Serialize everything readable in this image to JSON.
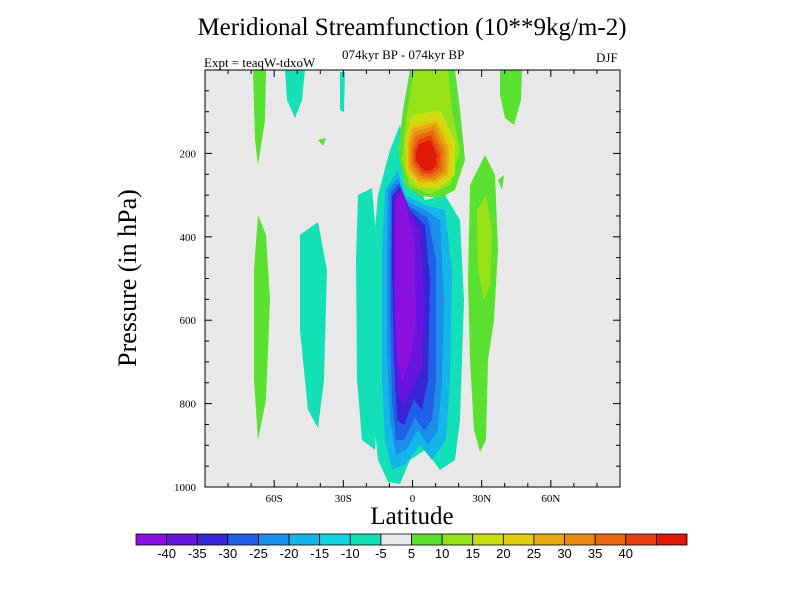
{
  "chart_data": {
    "type": "heatmap",
    "title": "Meridional Streamfunction (10**9kg/m-2)",
    "subtitle": "074kyr BP - 074kyr BP",
    "experiment": "Expt = teaqW-tdxoW",
    "season": "DJF",
    "xlabel": "Latitude",
    "ylabel": "Pressure (in hPa)",
    "xlim": [
      -90,
      90
    ],
    "ylim": [
      1000,
      0
    ],
    "x_ticks": [
      {
        "value": -60,
        "label": "60S"
      },
      {
        "value": -30,
        "label": "30S"
      },
      {
        "value": 0,
        "label": "0"
      },
      {
        "value": 30,
        "label": "30N"
      },
      {
        "value": 60,
        "label": "60N"
      }
    ],
    "y_ticks": [
      {
        "value": 200,
        "label": "200"
      },
      {
        "value": 400,
        "label": "400"
      },
      {
        "value": 600,
        "label": "600"
      },
      {
        "value": 800,
        "label": "800"
      },
      {
        "value": 1000,
        "label": "1000"
      }
    ],
    "background_color": "#e8e8e8",
    "colorbar": {
      "colors": [
        "#8a10e0",
        "#6a14e0",
        "#3a24d8",
        "#2060e8",
        "#1a8ee8",
        "#14b6ea",
        "#12d4e0",
        "#14e0b8",
        "#e8e8e8",
        "#5ae030",
        "#98e018",
        "#c8de10",
        "#e2cc10",
        "#e8aa10",
        "#e88a10",
        "#e86810",
        "#e84010",
        "#e01808"
      ],
      "labels": [
        "-40",
        "-35",
        "-30",
        "-25",
        "-20",
        "-15",
        "-10",
        "-5",
        "5",
        "10",
        "15",
        "20",
        "25",
        "30",
        "35",
        "40"
      ]
    },
    "contour_features": [
      {
        "level_index": 0,
        "lat": [
          -12,
          -5
        ],
        "p": [
          230,
          920
        ],
        "note": "core minimum below -40"
      },
      {
        "level_index": 2,
        "lat": [
          -14,
          5
        ],
        "p": [
          220,
          960
        ]
      },
      {
        "level_index": 5,
        "lat": [
          -17,
          12
        ],
        "p": [
          200,
          970
        ]
      },
      {
        "level_index": 7,
        "lat": [
          -20,
          20
        ],
        "p": [
          180,
          990
        ]
      },
      {
        "level_index": 7,
        "lat": [
          -40,
          -28
        ],
        "p": [
          290,
          800
        ]
      },
      {
        "level_index": 9,
        "lat": [
          -66,
          -58
        ],
        "p": [
          290,
          880
        ]
      },
      {
        "level_index": 9,
        "lat": [
          25,
          40
        ],
        "p": [
          160,
          830
        ]
      },
      {
        "level_index": 10,
        "lat": [
          28,
          36
        ],
        "p": [
          260,
          560
        ]
      },
      {
        "level_index": 9,
        "lat": [
          -2,
          22
        ],
        "p": [
          0,
          250
        ]
      },
      {
        "level_index": 11,
        "lat": [
          4,
          20
        ],
        "p": [
          110,
          230
        ]
      },
      {
        "level_index": 17,
        "lat": [
          8,
          14
        ],
        "p": [
          155,
          210
        ],
        "note": "core maximum above 40"
      }
    ]
  }
}
